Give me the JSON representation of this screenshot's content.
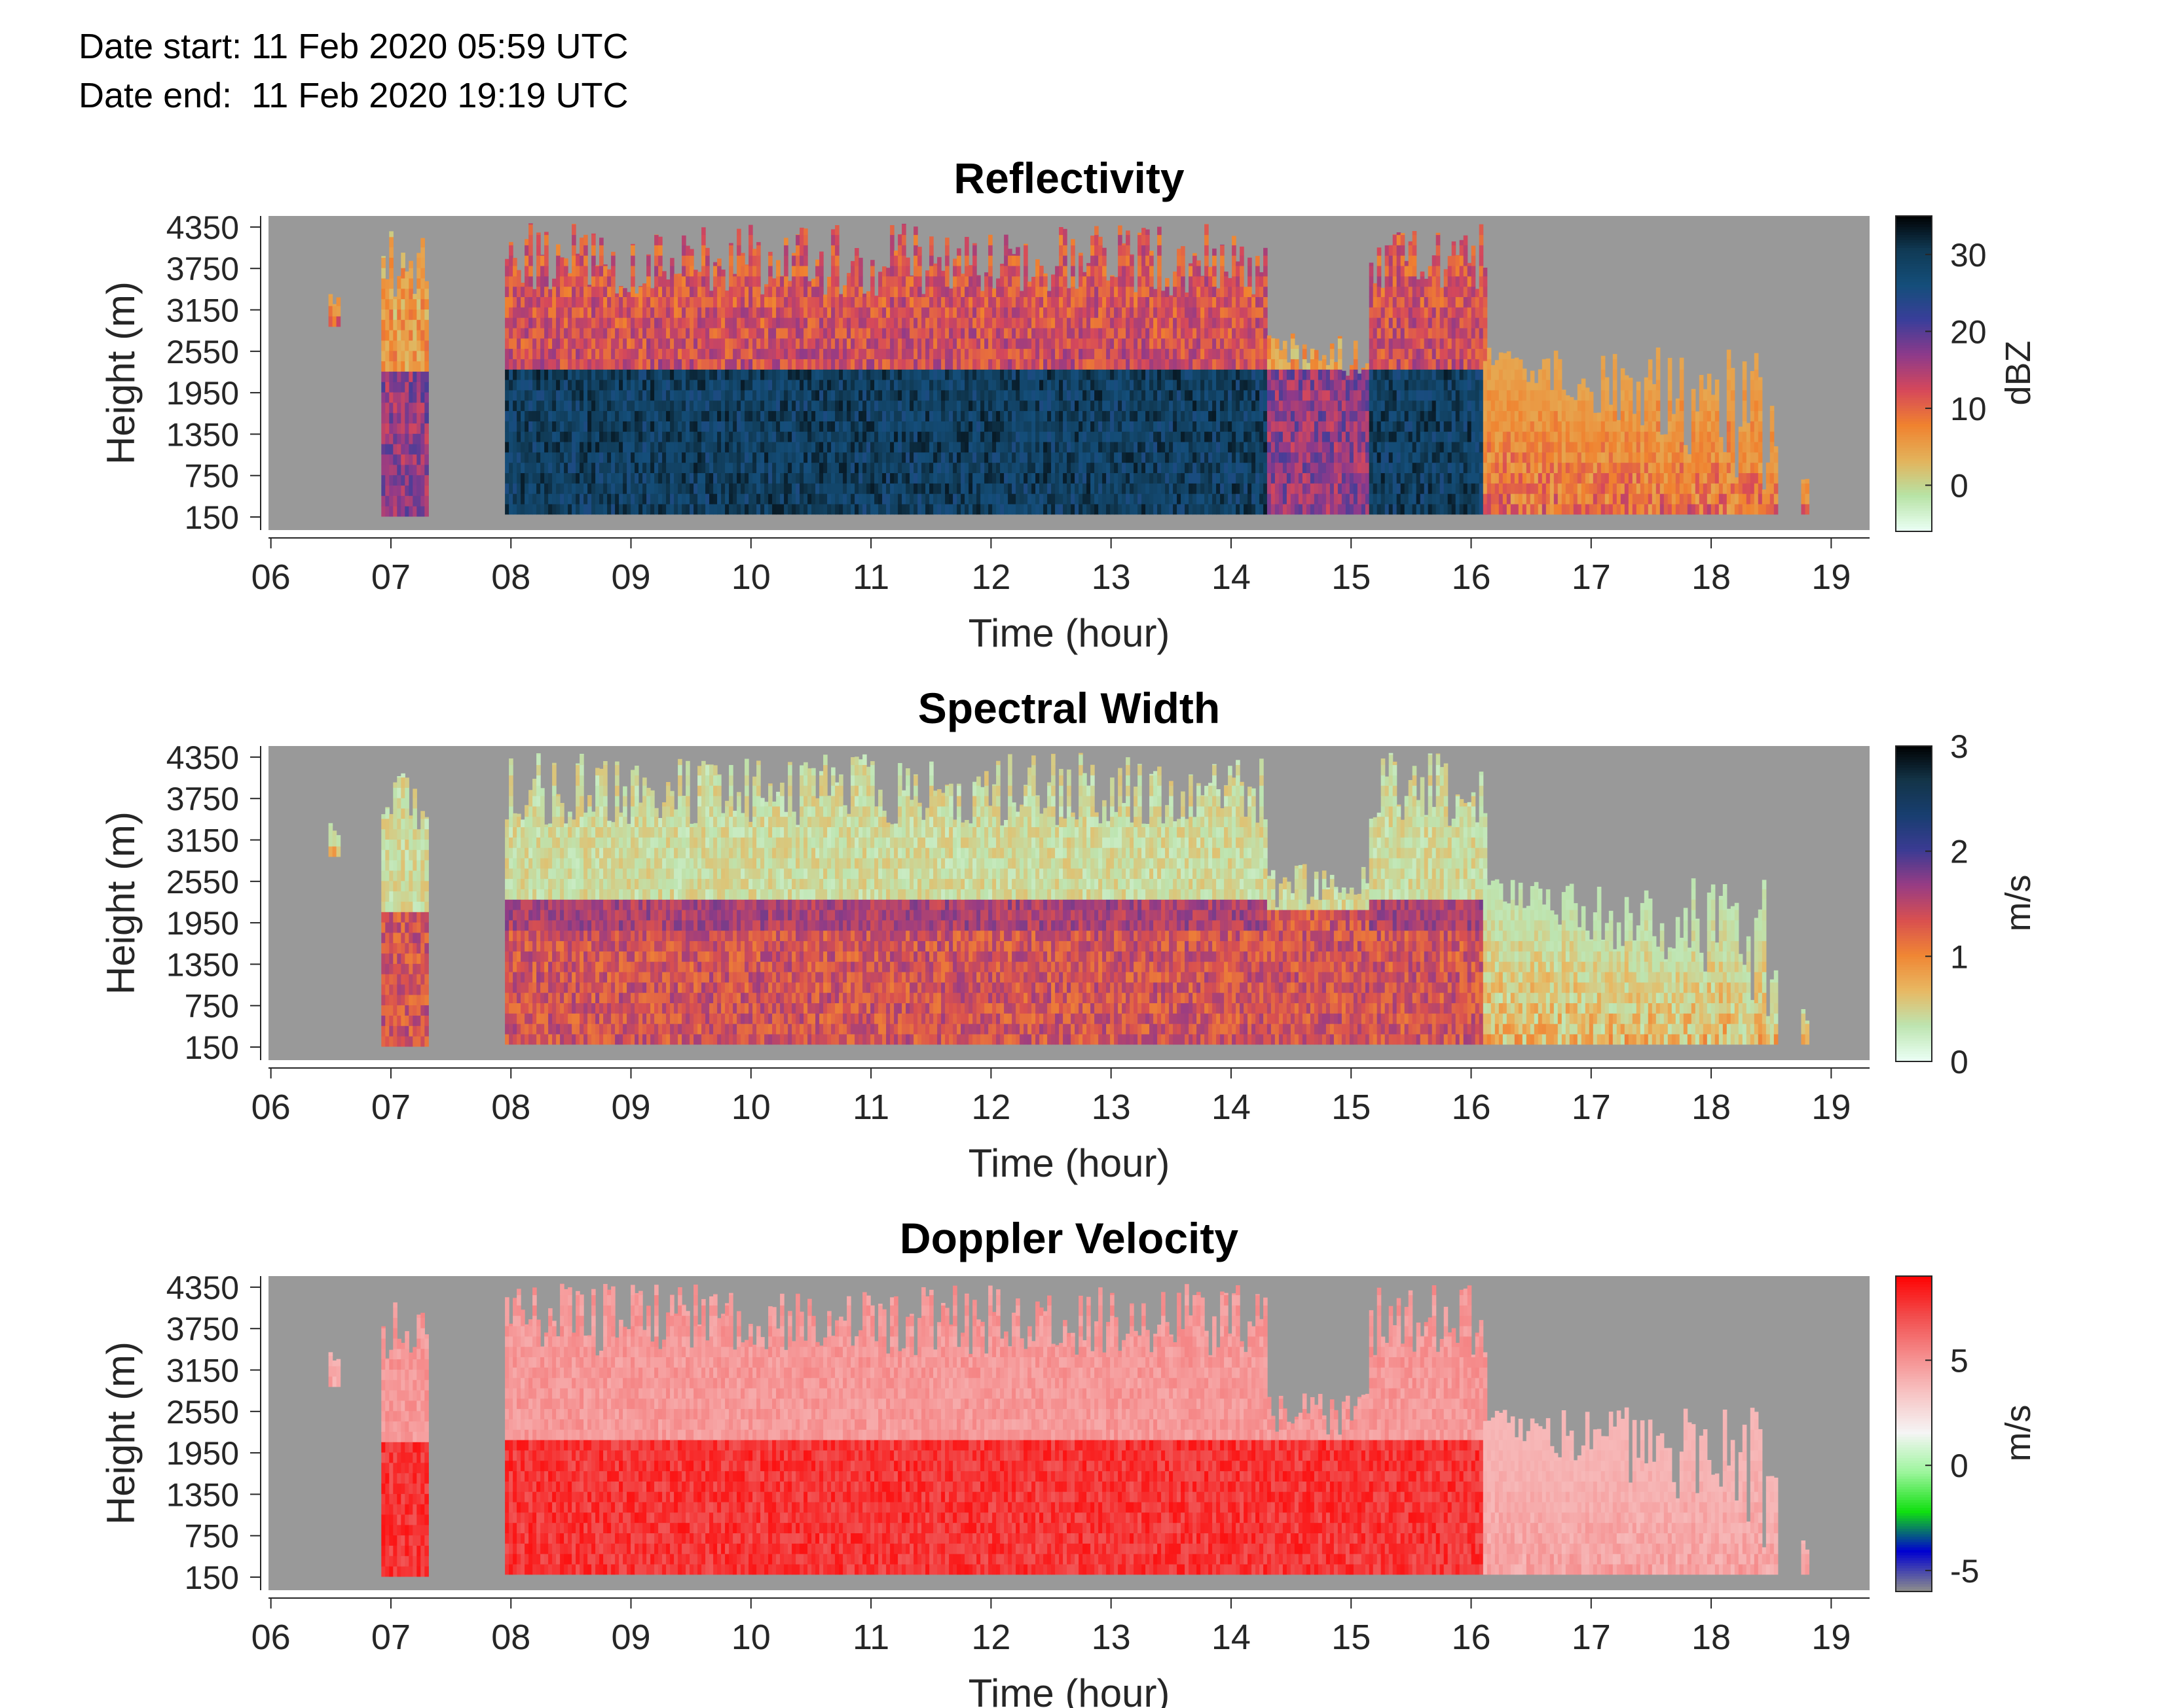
{
  "header": {
    "date_start": "Date start: 11 Feb 2020 05:59 UTC",
    "date_end": "Date end:  11 Feb 2020 19:19 UTC"
  },
  "chart_data": [
    {
      "type": "heatmap",
      "title": "Reflectivity",
      "xlabel": "Time (hour)",
      "ylabel": "Height (m)",
      "x_ticks": [
        "06",
        "07",
        "08",
        "09",
        "10",
        "11",
        "12",
        "13",
        "14",
        "15",
        "16",
        "17",
        "18",
        "19"
      ],
      "y_ticks": [
        "150",
        "750",
        "1350",
        "1950",
        "2550",
        "3150",
        "3750",
        "4350"
      ],
      "xlim": [
        5.98,
        19.32
      ],
      "ylim": [
        150,
        4700
      ],
      "colorbar": {
        "label": "dBZ",
        "ticks": [
          0,
          10,
          20,
          30
        ],
        "range": [
          -6,
          35
        ],
        "colors": [
          "#eafff4",
          "#b7e3a5",
          "#e3b35b",
          "#f0822f",
          "#d6485a",
          "#8e3a8a",
          "#3a3e9a",
          "#144e7a",
          "#103a55",
          "#000000"
        ]
      },
      "background_color": "#999999",
      "segments": [
        {
          "start": 6.48,
          "end": 6.56,
          "top": 3600,
          "base": 3100,
          "level": "weak"
        },
        {
          "start": 6.92,
          "end": 7.3,
          "top": 4500,
          "base": 350,
          "level": "moderate"
        },
        {
          "start": 7.95,
          "end": 14.3,
          "top": 4600,
          "base": 380,
          "level": "strong"
        },
        {
          "start": 14.3,
          "end": 15.15,
          "top": 3000,
          "base": 380,
          "level": "moderate"
        },
        {
          "start": 15.15,
          "end": 16.1,
          "top": 4600,
          "base": 380,
          "level": "strong"
        },
        {
          "start": 16.1,
          "end": 18.55,
          "top": 2800,
          "base": 380,
          "level": "weak"
        },
        {
          "start": 18.75,
          "end": 18.8,
          "top": 900,
          "base": 380,
          "level": "weak"
        }
      ]
    },
    {
      "type": "heatmap",
      "title": "Spectral Width",
      "xlabel": "Time (hour)",
      "ylabel": "Height (m)",
      "x_ticks": [
        "06",
        "07",
        "08",
        "09",
        "10",
        "11",
        "12",
        "13",
        "14",
        "15",
        "16",
        "17",
        "18",
        "19"
      ],
      "y_ticks": [
        "150",
        "750",
        "1350",
        "1950",
        "2550",
        "3150",
        "3750",
        "4350"
      ],
      "xlim": [
        5.98,
        19.32
      ],
      "ylim": [
        150,
        4700
      ],
      "colorbar": {
        "label": "m/s",
        "ticks": [
          0,
          1,
          2,
          3
        ],
        "range": [
          0,
          3
        ],
        "colors": [
          "#eafff4",
          "#bde4b0",
          "#e8b862",
          "#f08634",
          "#d9504f",
          "#983c84",
          "#3b3b93",
          "#183e70",
          "#133448",
          "#000000"
        ]
      },
      "background_color": "#999999",
      "segments": [
        {
          "start": 6.48,
          "end": 6.56,
          "top": 3600,
          "base": 3100,
          "level": "weak"
        },
        {
          "start": 6.92,
          "end": 7.3,
          "top": 4500,
          "base": 350,
          "level": "moderate"
        },
        {
          "start": 7.95,
          "end": 14.3,
          "top": 4600,
          "base": 380,
          "level": "strong"
        },
        {
          "start": 14.3,
          "end": 15.15,
          "top": 3000,
          "base": 380,
          "level": "moderate"
        },
        {
          "start": 15.15,
          "end": 16.1,
          "top": 4600,
          "base": 380,
          "level": "strong"
        },
        {
          "start": 16.1,
          "end": 18.55,
          "top": 2800,
          "base": 380,
          "level": "weak"
        },
        {
          "start": 18.75,
          "end": 18.8,
          "top": 900,
          "base": 380,
          "level": "weak"
        }
      ]
    },
    {
      "type": "heatmap",
      "title": "Doppler Velocity",
      "xlabel": "Time (hour)",
      "ylabel": "Height (m)",
      "x_ticks": [
        "06",
        "07",
        "08",
        "09",
        "10",
        "11",
        "12",
        "13",
        "14",
        "15",
        "16",
        "17",
        "18",
        "19"
      ],
      "y_ticks": [
        "150",
        "750",
        "1350",
        "1950",
        "2550",
        "3150",
        "3750",
        "4350"
      ],
      "xlim": [
        5.98,
        19.32
      ],
      "ylim": [
        150,
        4700
      ],
      "colorbar": {
        "label": "m/s",
        "ticks": [
          -5,
          0,
          5
        ],
        "range": [
          -6,
          9
        ],
        "colors": [
          "#8c8c8c",
          "#0000d0",
          "#10e010",
          "#9cf59c",
          "#f5f5f5",
          "#f7c4c4",
          "#f58a8a",
          "#f24a4a",
          "#ff0000"
        ]
      },
      "background_color": "#999999",
      "segments": [
        {
          "start": 6.48,
          "end": 6.56,
          "top": 3600,
          "base": 3100,
          "level": "weak"
        },
        {
          "start": 6.92,
          "end": 7.3,
          "top": 4500,
          "base": 350,
          "level": "moderate"
        },
        {
          "start": 7.95,
          "end": 14.3,
          "top": 4600,
          "base": 380,
          "level": "strong"
        },
        {
          "start": 14.3,
          "end": 15.15,
          "top": 3000,
          "base": 380,
          "level": "moderate"
        },
        {
          "start": 15.15,
          "end": 16.1,
          "top": 4600,
          "base": 380,
          "level": "strong"
        },
        {
          "start": 16.1,
          "end": 18.55,
          "top": 2800,
          "base": 380,
          "level": "weak"
        },
        {
          "start": 18.75,
          "end": 18.8,
          "top": 900,
          "base": 380,
          "level": "weak"
        }
      ]
    }
  ]
}
